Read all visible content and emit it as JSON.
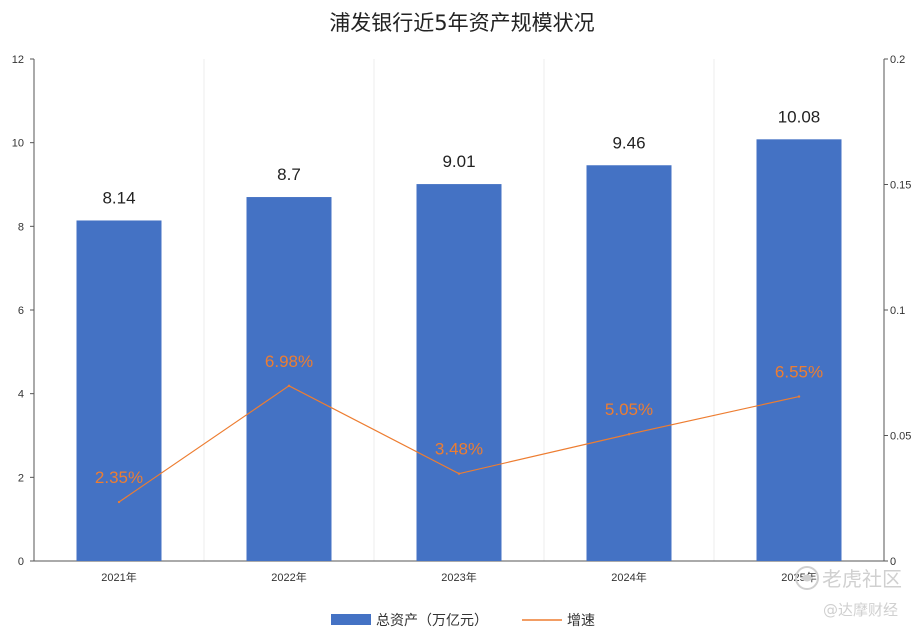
{
  "chart_data": {
    "type": "bar",
    "title": "浦发银行近5年资产规模状况",
    "categories": [
      "2021年",
      "2022年",
      "2023年",
      "2024年",
      "2025年"
    ],
    "series": [
      {
        "name": "总资产（万亿元）",
        "type": "bar",
        "axis": "left",
        "values": [
          8.14,
          8.7,
          9.01,
          9.46,
          10.08
        ],
        "labels": [
          "8.14",
          "8.7",
          "9.01",
          "9.46",
          "10.08"
        ],
        "color": "#4472c4"
      },
      {
        "name": "增速",
        "type": "line",
        "axis": "right",
        "values": [
          0.0235,
          0.0698,
          0.0348,
          0.0505,
          0.0655
        ],
        "labels": [
          "2.35%",
          "6.98%",
          "3.48%",
          "5.05%",
          "6.55%"
        ],
        "color": "#ed7d31"
      }
    ],
    "y_left": {
      "ylim": [
        0,
        12
      ],
      "ticks": [
        "0",
        "2",
        "4",
        "6",
        "8",
        "10",
        "12"
      ]
    },
    "y_right": {
      "ylim": [
        0,
        0.2
      ],
      "ticks": [
        "0",
        "0.05",
        "0.1",
        "0.15",
        "0.2"
      ]
    },
    "grid": "vertical",
    "legend_position": "bottom-center"
  },
  "watermark": {
    "line1": "老虎社区",
    "line2": "@达摩财经"
  }
}
